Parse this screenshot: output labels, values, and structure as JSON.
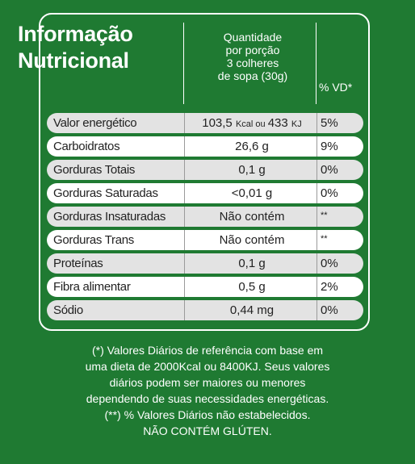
{
  "title": {
    "line1": "Informação",
    "line2": "Nutricional"
  },
  "serving": {
    "line1": "Quantidade",
    "line2": "por porção",
    "line3": "3 colheres",
    "line4": "de sopa (30g)"
  },
  "vd_header": "% VD*",
  "rows": [
    {
      "name": "Valor energético",
      "amount_main": "103,5 ",
      "amount_unit1": "Kcal ou ",
      "amount_mid": "433 ",
      "amount_unit2": "KJ",
      "vd": "5%"
    },
    {
      "name": "Carboidratos",
      "amount": "26,6 g",
      "vd": "9%"
    },
    {
      "name": "Gorduras Totais",
      "amount": "0,1 g",
      "vd": "0%"
    },
    {
      "name": "Gorduras Saturadas",
      "amount": "<0,01 g",
      "vd": "0%"
    },
    {
      "name": "Gorduras Insaturadas",
      "amount": "Não contém",
      "vd": "**"
    },
    {
      "name": "Gorduras Trans",
      "amount": "Não contém",
      "vd": "**"
    },
    {
      "name": "Proteínas",
      "amount": "0,1 g",
      "vd": "0%"
    },
    {
      "name": "Fibra alimentar",
      "amount": "0,5 g",
      "vd": "2%"
    },
    {
      "name": "Sódio",
      "amount": "0,44 mg",
      "vd": "0%"
    }
  ],
  "footnote": {
    "line1": "(*) Valores Diários de referência com base em",
    "line2": "uma dieta de 2000Kcal ou 8400KJ. Seus valores",
    "line3": "diários podem ser maiores ou menores",
    "line4": "dependendo de suas necessidades energéticas.",
    "line5": "(**) % Valores Diários não estabelecidos.",
    "line6": "NÃO CONTÉM GLÚTEN."
  },
  "colors": {
    "background": "#1f7a32",
    "row_light": "#ffffff",
    "row_gray": "#e3e3e3"
  }
}
